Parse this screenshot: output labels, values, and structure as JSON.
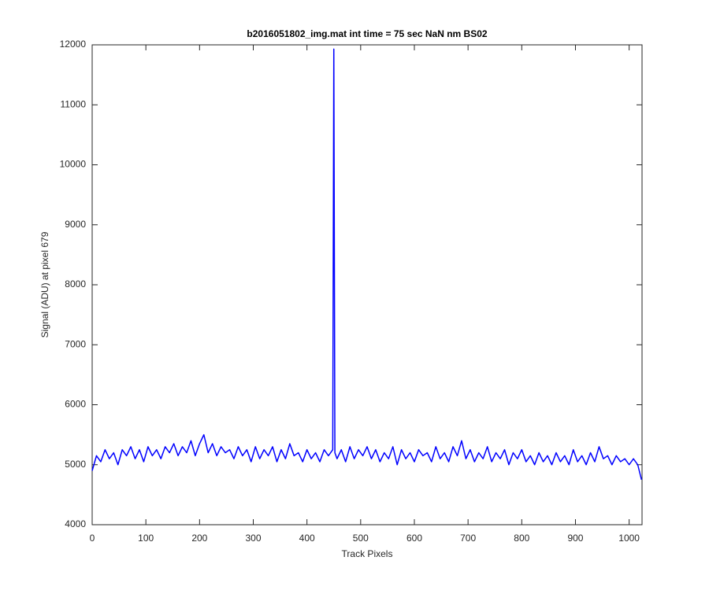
{
  "chart_data": {
    "type": "line",
    "title": "b2016051802_img.mat int time = 75 sec  NaN nm BS02",
    "x_label": "Track Pixels",
    "y_label": "Signal (ADU) at pixel 679",
    "xlim": [
      0,
      1024
    ],
    "ylim": [
      4000,
      12000
    ],
    "xticks": [
      0,
      100,
      200,
      300,
      400,
      500,
      600,
      700,
      800,
      900,
      1000
    ],
    "yticks": [
      4000,
      5000,
      6000,
      7000,
      8000,
      9000,
      10000,
      11000,
      12000
    ],
    "grid": false,
    "x": [
      0,
      8,
      16,
      24,
      32,
      40,
      48,
      56,
      64,
      72,
      80,
      88,
      96,
      104,
      112,
      120,
      128,
      136,
      144,
      152,
      160,
      168,
      176,
      184,
      192,
      200,
      208,
      216,
      224,
      232,
      240,
      248,
      256,
      264,
      272,
      280,
      288,
      296,
      304,
      312,
      320,
      328,
      336,
      344,
      352,
      360,
      368,
      376,
      384,
      392,
      400,
      408,
      416,
      424,
      432,
      440,
      448,
      450,
      452,
      456,
      464,
      472,
      480,
      488,
      496,
      504,
      512,
      520,
      528,
      536,
      544,
      552,
      560,
      568,
      576,
      584,
      592,
      600,
      608,
      616,
      624,
      632,
      640,
      648,
      656,
      664,
      672,
      680,
      688,
      696,
      704,
      712,
      720,
      728,
      736,
      744,
      752,
      760,
      768,
      776,
      784,
      792,
      800,
      808,
      816,
      824,
      832,
      840,
      848,
      856,
      864,
      872,
      880,
      888,
      896,
      904,
      912,
      920,
      928,
      936,
      944,
      952,
      960,
      968,
      976,
      984,
      992,
      1000,
      1008,
      1016,
      1023
    ],
    "series": [
      {
        "name": "Signal",
        "color": "#0000ff",
        "values": [
          4900,
          5150,
          5050,
          5250,
          5100,
          5200,
          5000,
          5250,
          5150,
          5300,
          5100,
          5250,
          5050,
          5300,
          5150,
          5250,
          5100,
          5300,
          5200,
          5350,
          5150,
          5300,
          5200,
          5400,
          5150,
          5350,
          5500,
          5200,
          5350,
          5150,
          5300,
          5200,
          5250,
          5100,
          5300,
          5150,
          5250,
          5050,
          5300,
          5100,
          5250,
          5150,
          5300,
          5050,
          5250,
          5100,
          5350,
          5150,
          5200,
          5050,
          5250,
          5100,
          5200,
          5050,
          5250,
          5150,
          5250,
          11930,
          5200,
          5100,
          5250,
          5050,
          5300,
          5100,
          5250,
          5150,
          5300,
          5100,
          5250,
          5050,
          5200,
          5100,
          5300,
          5000,
          5250,
          5100,
          5200,
          5050,
          5250,
          5150,
          5200,
          5050,
          5300,
          5100,
          5200,
          5050,
          5300,
          5150,
          5400,
          5100,
          5250,
          5050,
          5200,
          5100,
          5300,
          5050,
          5200,
          5100,
          5250,
          5000,
          5200,
          5100,
          5250,
          5050,
          5150,
          5000,
          5200,
          5050,
          5150,
          5000,
          5200,
          5050,
          5150,
          5000,
          5250,
          5050,
          5150,
          5000,
          5200,
          5050,
          5300,
          5100,
          5150,
          5000,
          5150,
          5050,
          5100,
          5000,
          5100,
          5000,
          4750
        ]
      }
    ]
  }
}
